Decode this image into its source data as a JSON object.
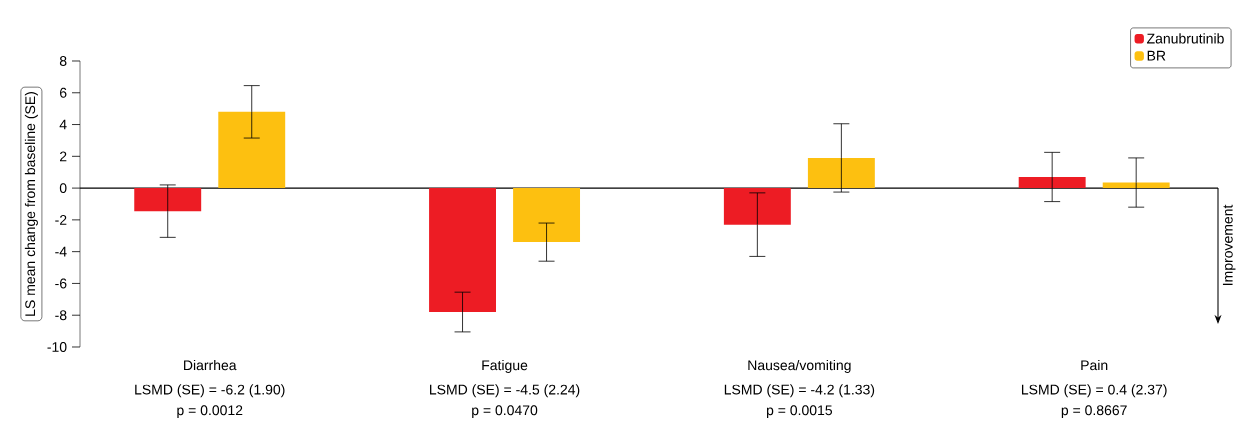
{
  "chart_data": {
    "type": "bar",
    "ylabel": "LS mean change from baseline (SE)",
    "categories": [
      "Diarrhea",
      "Fatigue",
      "Nausea/vomiting",
      "Pain"
    ],
    "series": [
      {
        "name": "Zanubrutinib",
        "color": "#ed1c24",
        "values": [
          -1.45,
          -7.8,
          -2.3,
          0.7
        ],
        "errors": [
          1.65,
          1.25,
          2.0,
          1.55
        ]
      },
      {
        "name": "BR",
        "color": "#fdc010",
        "values": [
          4.8,
          -3.4,
          1.9,
          0.35
        ],
        "errors": [
          1.65,
          1.2,
          2.15,
          1.55
        ]
      }
    ],
    "ylim": [
      -10,
      8
    ],
    "yticks": [
      -10,
      -8,
      -6,
      -4,
      -2,
      0,
      2,
      4,
      6,
      8
    ],
    "legend": "top right",
    "annotations": [
      "Improvement",
      "LSMD (SE) = -6.2 (1.90)",
      "p = 0.0012",
      "LSMD (SE) = -4.5 (2.24)",
      "p = 0.0470",
      "LSMD (SE) = -4.2 (1.33)",
      "p = 0.0015",
      "LSMD (SE) = 0.4 (2.37)",
      "p = 0.8667"
    ]
  }
}
